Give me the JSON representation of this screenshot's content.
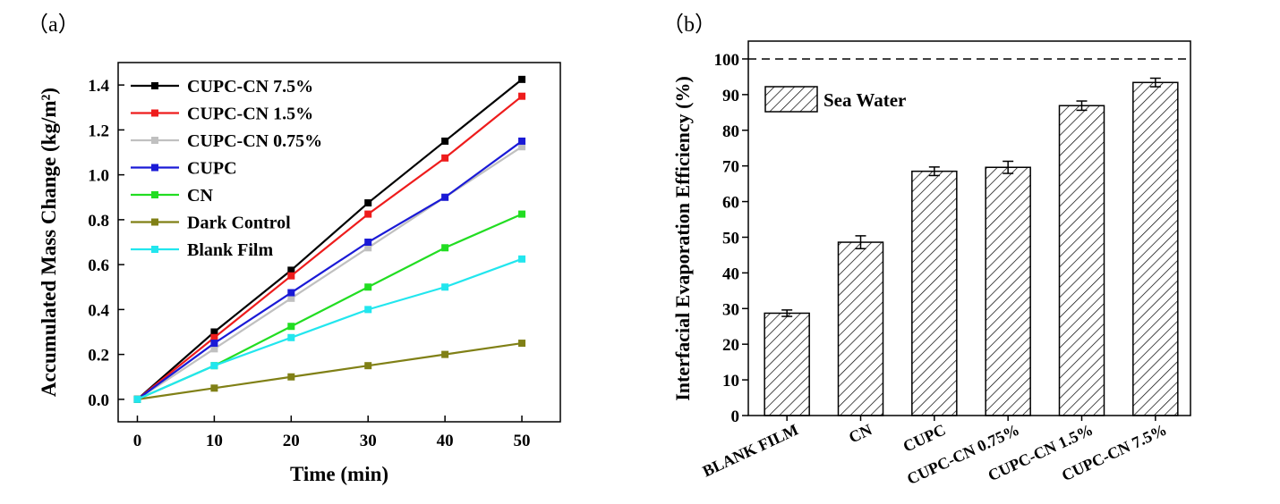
{
  "panels": {
    "a_label": "（a）",
    "b_label": "（b）"
  },
  "chart_data": [
    {
      "type": "line",
      "panel": "a",
      "xlabel": "Time (min)",
      "ylabel": "Accumulated Mass Change (kg/m²)",
      "xlim": [
        -2.5,
        55
      ],
      "ylim": [
        -0.1,
        1.5
      ],
      "xticks": [
        0,
        10,
        20,
        30,
        40,
        50
      ],
      "xtick_labels": [
        "0",
        "10",
        "20",
        "30",
        "40",
        "50"
      ],
      "yticks": [
        0.0,
        0.2,
        0.4,
        0.6,
        0.8,
        1.0,
        1.2,
        1.4
      ],
      "ytick_labels": [
        "0.0",
        "0.2",
        "0.4",
        "0.6",
        "0.8",
        "1.0",
        "1.2",
        "1.4"
      ],
      "grid": false,
      "legend_position": "top-left",
      "x": [
        0,
        10,
        20,
        30,
        40,
        50
      ],
      "series": [
        {
          "name": "CUPC-CN 7.5%",
          "color": "#000000",
          "values": [
            0,
            0.3,
            0.575,
            0.875,
            1.15,
            1.425
          ]
        },
        {
          "name": "CUPC-CN 1.5%",
          "color": "#ee1c1c",
          "values": [
            0,
            0.275,
            0.55,
            0.825,
            1.075,
            1.35
          ]
        },
        {
          "name": "CUPC-CN 0.75%",
          "color": "#c0c0c0",
          "values": [
            0,
            0.225,
            0.45,
            0.675,
            0.9,
            1.125
          ]
        },
        {
          "name": "CUPC",
          "color": "#1a1ad6",
          "values": [
            0,
            0.25,
            0.475,
            0.7,
            0.9,
            1.15
          ]
        },
        {
          "name": "CN",
          "color": "#22dd22",
          "values": [
            0,
            0.15,
            0.325,
            0.5,
            0.675,
            0.825
          ]
        },
        {
          "name": "Dark Control",
          "color": "#808016",
          "values": [
            0,
            0.05,
            0.1,
            0.15,
            0.2,
            0.25
          ]
        },
        {
          "name": "Blank Film",
          "color": "#22e6ee",
          "values": [
            0,
            0.15,
            0.275,
            0.4,
            0.5,
            0.625
          ]
        }
      ]
    },
    {
      "type": "bar",
      "panel": "b",
      "ylabel": "Interfacial Evaporation Efficiency (%)",
      "ylim": [
        0,
        105
      ],
      "yticks": [
        0,
        10,
        20,
        30,
        40,
        50,
        60,
        70,
        80,
        90,
        100
      ],
      "ytick_labels": [
        "0",
        "10",
        "20",
        "30",
        "40",
        "50",
        "60",
        "70",
        "80",
        "90",
        "100"
      ],
      "categories": [
        "BLANK FILM",
        "CN",
        "CUPC",
        "CUPC-CN 0.75%",
        "CUPC-CN 1.5%",
        "CUPC-CN 7.5%"
      ],
      "series": [
        {
          "name": "Sea Water",
          "values": [
            28.7,
            48.6,
            68.5,
            69.6,
            86.9,
            93.4
          ],
          "errors": [
            0.9,
            1.8,
            1.2,
            1.7,
            1.3,
            1.2
          ]
        }
      ],
      "reference_line": 100,
      "grid": false,
      "legend_position": "top-left"
    }
  ]
}
